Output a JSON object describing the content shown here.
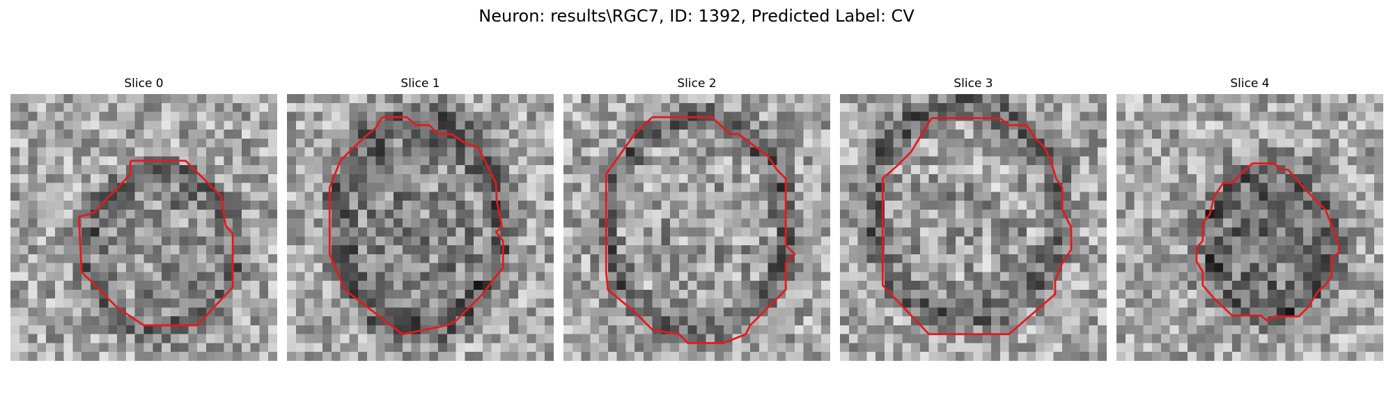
{
  "figure": {
    "title": "Neuron: results\\RGC7, ID: 1392, Predicted Label: CV"
  },
  "panels": [
    {
      "title": "Slice 0",
      "contour_color": "#e41a1c"
    },
    {
      "title": "Slice 1",
      "contour_color": "#e41a1c"
    },
    {
      "title": "Slice 2",
      "contour_color": "#e41a1c"
    },
    {
      "title": "Slice 3",
      "contour_color": "#e41a1c"
    },
    {
      "title": "Slice 4",
      "contour_color": "#e41a1c"
    }
  ]
}
